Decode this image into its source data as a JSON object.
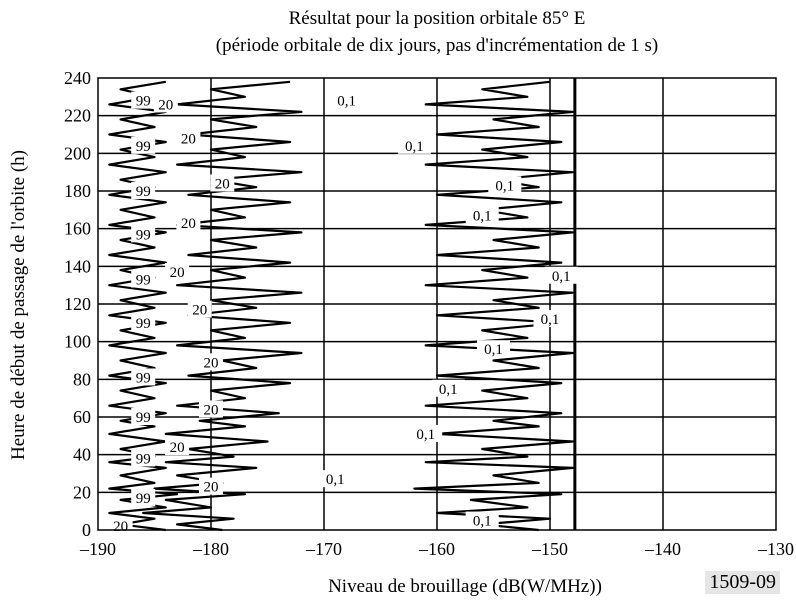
{
  "chart_data": {
    "type": "line",
    "title": "Résultat pour la position orbitale 85° E",
    "subtitle": "(période orbitale de dix jours, pas d'incrémentation de 1 s)",
    "xlabel": "Niveau de brouillage (dB(W/MHz))",
    "ylabel": "Heure de début de passage de l'orbite (h)",
    "xlim": [
      -190,
      -130
    ],
    "ylim": [
      0,
      240
    ],
    "xticks": [
      "–190",
      "–180",
      "–170",
      "–160",
      "–150",
      "–140",
      "–130"
    ],
    "yticks": [
      "0",
      "20",
      "40",
      "60",
      "80",
      "100",
      "120",
      "140",
      "160",
      "180",
      "200",
      "220",
      "240"
    ],
    "grid": true,
    "threshold_x": -147.8,
    "series": [
      {
        "name": "99",
        "values": [
          [
            -184,
            0
          ],
          [
            -188,
            3
          ],
          [
            -185,
            6
          ],
          [
            -189,
            9
          ],
          [
            -184,
            12
          ],
          [
            -188,
            16
          ],
          [
            -183,
            19
          ],
          [
            -189,
            22
          ],
          [
            -185,
            25
          ],
          [
            -188,
            29
          ],
          [
            -184,
            33
          ],
          [
            -189,
            36
          ],
          [
            -185,
            39
          ],
          [
            -188,
            43
          ],
          [
            -184,
            47
          ],
          [
            -189,
            51
          ],
          [
            -185,
            55
          ],
          [
            -188,
            58
          ],
          [
            -184,
            62
          ],
          [
            -189,
            66
          ],
          [
            -185,
            70
          ],
          [
            -188,
            74
          ],
          [
            -184,
            78
          ],
          [
            -189,
            82
          ],
          [
            -185,
            86
          ],
          [
            -188,
            90
          ],
          [
            -184,
            94
          ],
          [
            -189,
            98
          ],
          [
            -185,
            102
          ],
          [
            -188,
            106
          ],
          [
            -184,
            110
          ],
          [
            -189,
            114
          ],
          [
            -185,
            118
          ],
          [
            -188,
            122
          ],
          [
            -184,
            126
          ],
          [
            -189,
            130
          ],
          [
            -185,
            134
          ],
          [
            -188,
            138
          ],
          [
            -184,
            142
          ],
          [
            -189,
            146
          ],
          [
            -185,
            150
          ],
          [
            -188,
            154
          ],
          [
            -184,
            158
          ],
          [
            -189,
            162
          ],
          [
            -185,
            166
          ],
          [
            -188,
            170
          ],
          [
            -184,
            174
          ],
          [
            -189,
            178
          ],
          [
            -185,
            182
          ],
          [
            -188,
            186
          ],
          [
            -184,
            190
          ],
          [
            -189,
            194
          ],
          [
            -185,
            198
          ],
          [
            -188,
            202
          ],
          [
            -184,
            206
          ],
          [
            -189,
            210
          ],
          [
            -185,
            214
          ],
          [
            -188,
            218
          ],
          [
            -184,
            222
          ],
          [
            -189,
            226
          ],
          [
            -185,
            230
          ],
          [
            -188,
            234
          ],
          [
            -184,
            238
          ]
        ]
      },
      {
        "name": "20",
        "values": [
          [
            -179,
            0
          ],
          [
            -183,
            3
          ],
          [
            -178,
            6
          ],
          [
            -186,
            9
          ],
          [
            -180,
            12
          ],
          [
            -184,
            16
          ],
          [
            -177,
            19
          ],
          [
            -185,
            22
          ],
          [
            -179,
            25
          ],
          [
            -183,
            29
          ],
          [
            -176,
            33
          ],
          [
            -184,
            36
          ],
          [
            -178,
            39
          ],
          [
            -182,
            43
          ],
          [
            -175,
            47
          ],
          [
            -184,
            51
          ],
          [
            -177,
            55
          ],
          [
            -181,
            58
          ],
          [
            -174,
            62
          ],
          [
            -183,
            66
          ],
          [
            -177,
            70
          ],
          [
            -180,
            74
          ],
          [
            -173,
            78
          ],
          [
            -182,
            82
          ],
          [
            -176,
            86
          ],
          [
            -179,
            90
          ],
          [
            -172,
            94
          ],
          [
            -183,
            98
          ],
          [
            -177,
            102
          ],
          [
            -180,
            106
          ],
          [
            -173,
            110
          ],
          [
            -182,
            114
          ],
          [
            -176,
            118
          ],
          [
            -180,
            122
          ],
          [
            -172,
            126
          ],
          [
            -183,
            130
          ],
          [
            -177,
            134
          ],
          [
            -180,
            138
          ],
          [
            -173,
            142
          ],
          [
            -182,
            146
          ],
          [
            -176,
            150
          ],
          [
            -180,
            154
          ],
          [
            -172,
            158
          ],
          [
            -183,
            162
          ],
          [
            -177,
            166
          ],
          [
            -180,
            170
          ],
          [
            -173,
            174
          ],
          [
            -182,
            178
          ],
          [
            -176,
            182
          ],
          [
            -180,
            186
          ],
          [
            -172,
            190
          ],
          [
            -183,
            194
          ],
          [
            -177,
            198
          ],
          [
            -180,
            202
          ],
          [
            -173,
            206
          ],
          [
            -182,
            210
          ],
          [
            -176,
            214
          ],
          [
            -180,
            218
          ],
          [
            -172,
            222
          ],
          [
            -183,
            226
          ],
          [
            -177,
            230
          ],
          [
            -180,
            234
          ],
          [
            -173,
            238
          ]
        ]
      },
      {
        "name": "0,1",
        "values": [
          [
            -151,
            0
          ],
          [
            -156,
            3
          ],
          [
            -150,
            6
          ],
          [
            -160,
            9
          ],
          [
            -152,
            12
          ],
          [
            -157,
            16
          ],
          [
            -149,
            19
          ],
          [
            -162,
            22
          ],
          [
            -151,
            25
          ],
          [
            -155,
            29
          ],
          [
            -148,
            33
          ],
          [
            -161,
            36
          ],
          [
            -152,
            39
          ],
          [
            -156,
            43
          ],
          [
            -148,
            47
          ],
          [
            -160,
            51
          ],
          [
            -151,
            55
          ],
          [
            -155,
            58
          ],
          [
            -149,
            62
          ],
          [
            -161,
            66
          ],
          [
            -152,
            70
          ],
          [
            -156,
            74
          ],
          [
            -149,
            78
          ],
          [
            -160,
            82
          ],
          [
            -151,
            86
          ],
          [
            -155,
            90
          ],
          [
            -148,
            94
          ],
          [
            -161,
            98
          ],
          [
            -152,
            102
          ],
          [
            -156,
            106
          ],
          [
            -149,
            110
          ],
          [
            -160,
            114
          ],
          [
            -151,
            118
          ],
          [
            -155,
            122
          ],
          [
            -148,
            126
          ],
          [
            -161,
            130
          ],
          [
            -152,
            134
          ],
          [
            -156,
            138
          ],
          [
            -149,
            142
          ],
          [
            -160,
            146
          ],
          [
            -151,
            150
          ],
          [
            -155,
            154
          ],
          [
            -148,
            158
          ],
          [
            -161,
            162
          ],
          [
            -152,
            166
          ],
          [
            -156,
            170
          ],
          [
            -149,
            174
          ],
          [
            -160,
            178
          ],
          [
            -151,
            182
          ],
          [
            -155,
            186
          ],
          [
            -148,
            190
          ],
          [
            -161,
            194
          ],
          [
            -152,
            198
          ],
          [
            -156,
            202
          ],
          [
            -149,
            206
          ],
          [
            -160,
            210
          ],
          [
            -151,
            214
          ],
          [
            -155,
            218
          ],
          [
            -148,
            222
          ],
          [
            -161,
            226
          ],
          [
            -152,
            230
          ],
          [
            -156,
            234
          ],
          [
            -150,
            238
          ]
        ]
      }
    ],
    "annotations": [
      {
        "text": "20",
        "x": -188,
        "y": 2
      },
      {
        "text": "0,1",
        "x": -156,
        "y": 5
      },
      {
        "text": "99",
        "x": -186,
        "y": 17
      },
      {
        "text": "20",
        "x": -180,
        "y": 23
      },
      {
        "text": "0,1",
        "x": -169,
        "y": 27
      },
      {
        "text": "99",
        "x": -186,
        "y": 38
      },
      {
        "text": "20",
        "x": -183,
        "y": 44
      },
      {
        "text": "0,1",
        "x": -161,
        "y": 51
      },
      {
        "text": "99",
        "x": -186,
        "y": 60
      },
      {
        "text": "20",
        "x": -180,
        "y": 64
      },
      {
        "text": "0,1",
        "x": -159,
        "y": 75
      },
      {
        "text": "99",
        "x": -186,
        "y": 81
      },
      {
        "text": "20",
        "x": -180,
        "y": 89
      },
      {
        "text": "0,1",
        "x": -155,
        "y": 96
      },
      {
        "text": "99",
        "x": -186,
        "y": 110
      },
      {
        "text": "20",
        "x": -181,
        "y": 117
      },
      {
        "text": "0,1",
        "x": -150,
        "y": 112
      },
      {
        "text": "0,1",
        "x": -149,
        "y": 135
      },
      {
        "text": "99",
        "x": -186,
        "y": 133
      },
      {
        "text": "20",
        "x": -183,
        "y": 137
      },
      {
        "text": "99",
        "x": -186,
        "y": 157
      },
      {
        "text": "20",
        "x": -182,
        "y": 163
      },
      {
        "text": "0,1",
        "x": -156,
        "y": 167
      },
      {
        "text": "99",
        "x": -186,
        "y": 180
      },
      {
        "text": "20",
        "x": -179,
        "y": 184
      },
      {
        "text": "0,1",
        "x": -154,
        "y": 183
      },
      {
        "text": "99",
        "x": -186,
        "y": 204
      },
      {
        "text": "20",
        "x": -182,
        "y": 208
      },
      {
        "text": "0,1",
        "x": -162,
        "y": 204
      },
      {
        "text": "99",
        "x": -186,
        "y": 228
      },
      {
        "text": "20",
        "x": -184,
        "y": 226
      },
      {
        "text": "0,1",
        "x": -168,
        "y": 228
      }
    ]
  },
  "figure_id": "1509-09"
}
